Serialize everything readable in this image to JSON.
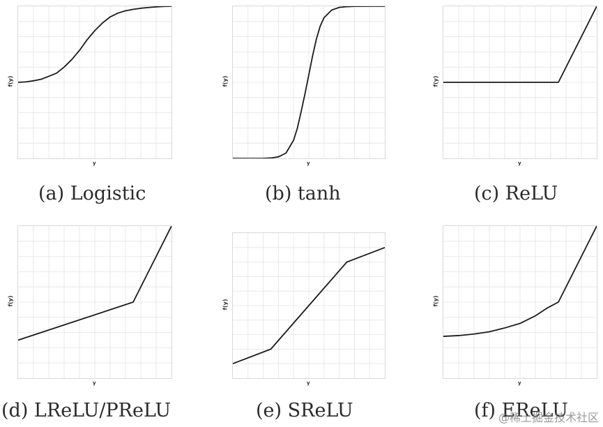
{
  "chart_data": [
    {
      "type": "line",
      "title": "(a) Logistic",
      "xlabel": "y",
      "ylabel": "f(y)",
      "xlim": [
        -1,
        1
      ],
      "ylim": [
        0,
        1
      ],
      "grid": true,
      "x": [
        -1.0,
        -0.9,
        -0.8,
        -0.7,
        -0.6,
        -0.5,
        -0.4,
        -0.3,
        -0.2,
        -0.1,
        0.0,
        0.1,
        0.2,
        0.3,
        0.4,
        0.5,
        0.6,
        0.7,
        0.8,
        0.9,
        1.0
      ],
      "y": [
        0.5,
        0.503,
        0.51,
        0.52,
        0.54,
        0.56,
        0.6,
        0.65,
        0.71,
        0.78,
        0.84,
        0.89,
        0.93,
        0.955,
        0.97,
        0.98,
        0.987,
        0.992,
        0.996,
        0.999,
        1.0
      ]
    },
    {
      "type": "line",
      "title": "(b) tanh",
      "xlabel": "y",
      "ylabel": "f(y)",
      "xlim": [
        -1,
        1
      ],
      "ylim": [
        -1,
        1
      ],
      "grid": true,
      "x": [
        -1.0,
        -0.8,
        -0.6,
        -0.5,
        -0.4,
        -0.3,
        -0.2,
        -0.15,
        -0.1,
        -0.05,
        0.0,
        0.05,
        0.1,
        0.15,
        0.2,
        0.3,
        0.4,
        0.5,
        0.6,
        0.8,
        1.0
      ],
      "y": [
        -1.0,
        -1.0,
        -0.999,
        -0.995,
        -0.98,
        -0.93,
        -0.76,
        -0.6,
        -0.38,
        -0.15,
        0.1,
        0.35,
        0.57,
        0.74,
        0.85,
        0.95,
        0.985,
        0.995,
        0.999,
        1.0,
        1.0
      ]
    },
    {
      "type": "line",
      "title": "(c) ReLU",
      "xlabel": "y",
      "ylabel": "f(y)",
      "xlim": [
        -1,
        1
      ],
      "ylim": [
        -1,
        1
      ],
      "grid": true,
      "x": [
        -1,
        0.5,
        1
      ],
      "y": [
        0,
        0,
        1
      ]
    },
    {
      "type": "line",
      "title": "(d) LReLU/PReLU",
      "xlabel": "y",
      "ylabel": "f(y)",
      "xlim": [
        -1,
        1
      ],
      "ylim": [
        -1,
        1
      ],
      "grid": true,
      "x": [
        -1,
        0.5,
        1
      ],
      "y": [
        -0.5,
        0,
        1
      ]
    },
    {
      "type": "line",
      "title": "(e) SReLU",
      "xlabel": "y",
      "ylabel": "f(y)",
      "xlim": [
        -1,
        1
      ],
      "ylim": [
        -1,
        1
      ],
      "grid": true,
      "x": [
        -1,
        -0.5,
        0.5,
        1
      ],
      "y": [
        -0.8,
        -0.6,
        0.6,
        0.8
      ]
    },
    {
      "type": "line",
      "title": "(f) EReLU",
      "xlabel": "y",
      "ylabel": "f(y)",
      "xlim": [
        -1,
        1
      ],
      "ylim": [
        -1,
        1
      ],
      "grid": true,
      "x": [
        -1.0,
        -0.8,
        -0.6,
        -0.4,
        -0.2,
        0.0,
        0.2,
        0.35,
        0.5,
        0.75,
        1.0
      ],
      "y": [
        -0.45,
        -0.44,
        -0.42,
        -0.39,
        -0.34,
        -0.28,
        -0.18,
        -0.08,
        0.0,
        0.5,
        1.0
      ]
    }
  ],
  "watermark": "@稀土掘金技术社区",
  "colors": {
    "line": "#1a1a1a",
    "grid": "#e4e4e4",
    "frame": "#d8d8d8"
  }
}
